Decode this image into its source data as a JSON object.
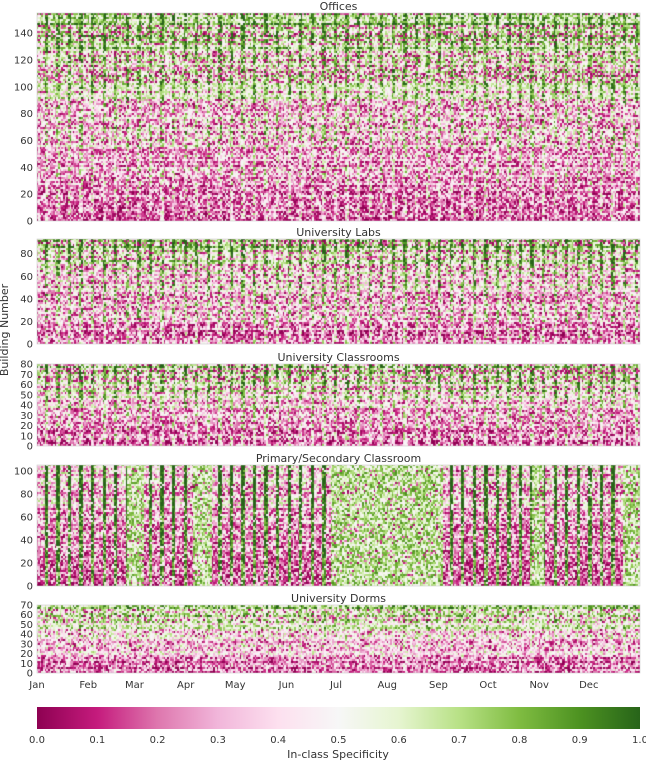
{
  "chart_data": [
    {
      "type": "heatmap",
      "title": "Offices",
      "ylim": [
        0,
        155
      ],
      "yticks": [
        0,
        20,
        40,
        60,
        80,
        100,
        120,
        140
      ],
      "density": 0.32,
      "rowSkew": 0.6,
      "weekday": 0.12
    },
    {
      "type": "heatmap",
      "title": "University Labs",
      "ylim": [
        0,
        93
      ],
      "yticks": [
        0,
        20,
        40,
        60,
        80
      ],
      "density": 0.3,
      "rowSkew": 0.55,
      "weekday": 0.15
    },
    {
      "type": "heatmap",
      "title": "University Classrooms",
      "ylim": [
        0,
        80
      ],
      "yticks": [
        0,
        10,
        20,
        30,
        40,
        50,
        60,
        70,
        80
      ],
      "density": 0.33,
      "rowSkew": 0.55,
      "weekday": 0.14
    },
    {
      "type": "heatmap",
      "title": "Primary/Secondary Classroom",
      "ylim": [
        0,
        105
      ],
      "yticks": [
        0,
        20,
        40,
        60,
        80,
        100
      ],
      "density": 0.42,
      "rowSkew": 0.35,
      "weekday": 0.3,
      "breaks": true
    },
    {
      "type": "heatmap",
      "title": "University Dorms",
      "ylim": [
        0,
        70
      ],
      "yticks": [
        0,
        10,
        20,
        30,
        40,
        50,
        60,
        70
      ],
      "density": 0.18,
      "rowSkew": 0.55,
      "weekday": 0.05
    }
  ],
  "shared_x": {
    "months": [
      "Jan",
      "Feb",
      "Mar",
      "Apr",
      "May",
      "Jun",
      "Jul",
      "Aug",
      "Sep",
      "Oct",
      "Nov",
      "Dec"
    ]
  },
  "ylabel": "Building Number",
  "colorbar": {
    "label": "In-class Specificity",
    "range": [
      0,
      1
    ],
    "ticks": [
      "0.0",
      "0.1",
      "0.2",
      "0.3",
      "0.4",
      "0.5",
      "0.6",
      "0.7",
      "0.8",
      "0.9",
      "1.0"
    ],
    "colormap": "PiYG",
    "stops": [
      "#8e0152",
      "#c51b7d",
      "#de77ae",
      "#f1b6da",
      "#fde0ef",
      "#f7f7f7",
      "#e6f5d0",
      "#b8e186",
      "#7fbc41",
      "#4d9221",
      "#276419"
    ]
  }
}
